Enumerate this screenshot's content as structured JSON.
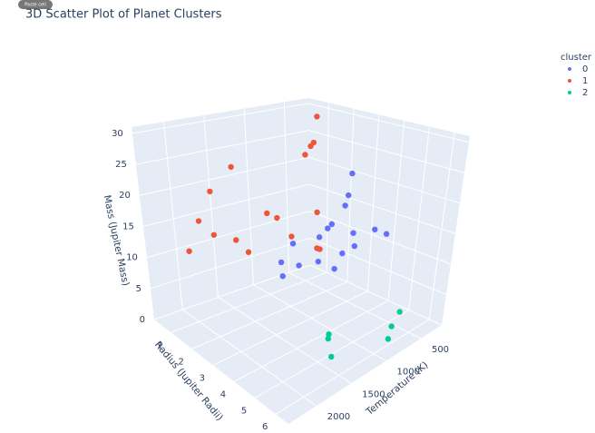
{
  "badge": "Paste cell",
  "chart_data": {
    "type": "scatter3d",
    "title": "3D Scatter Plot of Planet Clusters",
    "x_label": "Radius (Jupiter Radii)",
    "y_label": "Temperature (K)",
    "z_label": "Mass (Jupiter Mass)",
    "legend_title": "cluster",
    "xlim": [
      0.2,
      6.6
    ],
    "xticks": [
      1,
      2,
      3,
      4,
      5,
      6
    ],
    "ylim": [
      200,
      2400
    ],
    "yticks": [
      500,
      1000,
      1500,
      2000
    ],
    "zlim": [
      0,
      31
    ],
    "zticks": [
      0,
      5,
      10,
      15,
      20,
      25,
      30
    ],
    "grid": true,
    "series": [
      {
        "name": "0",
        "color": "#636efa",
        "x": [
          3.0,
          3.2,
          3.4,
          3.0,
          3.5,
          3.8,
          3.3,
          3.6,
          4.0,
          4.2,
          2.8,
          2.6,
          3.0,
          3.4,
          4.4,
          4.6,
          4.0
        ],
        "y": [
          500,
          600,
          700,
          800,
          900,
          700,
          1000,
          1100,
          900,
          800,
          1200,
          1300,
          1400,
          1300,
          600,
          500,
          1000
        ],
        "z": [
          22,
          19,
          18,
          14,
          16,
          14,
          14,
          11,
          12,
          13,
          13,
          10,
          9,
          11,
          15,
          14,
          10
        ]
      },
      {
        "name": "1",
        "color": "#EF553B",
        "x": [
          0.8,
          1.0,
          0.9,
          1.2,
          1.3,
          1.6,
          1.8,
          2.0,
          2.1,
          2.4,
          2.2,
          1.5,
          1.7,
          1.9,
          2.0,
          3.0,
          3.2
        ],
        "y": [
          2000,
          1900,
          1700,
          1500,
          1800,
          1600,
          1500,
          1300,
          1200,
          1100,
          700,
          500,
          600,
          700,
          800,
          900,
          1000
        ],
        "z": [
          11,
          16,
          20,
          24,
          14,
          13,
          11,
          17,
          16,
          13,
          15,
          30,
          26,
          26,
          25,
          11,
          12
        ]
      },
      {
        "name": "2",
        "color": "#00cc96",
        "x": [
          4.5,
          4.8,
          5.3,
          5.5,
          5.8,
          6.0
        ],
        "y": [
          1200,
          1300,
          1400,
          500,
          700,
          800
        ],
        "z": [
          1.5,
          2,
          0.8,
          2.5,
          2,
          1
        ]
      }
    ]
  }
}
